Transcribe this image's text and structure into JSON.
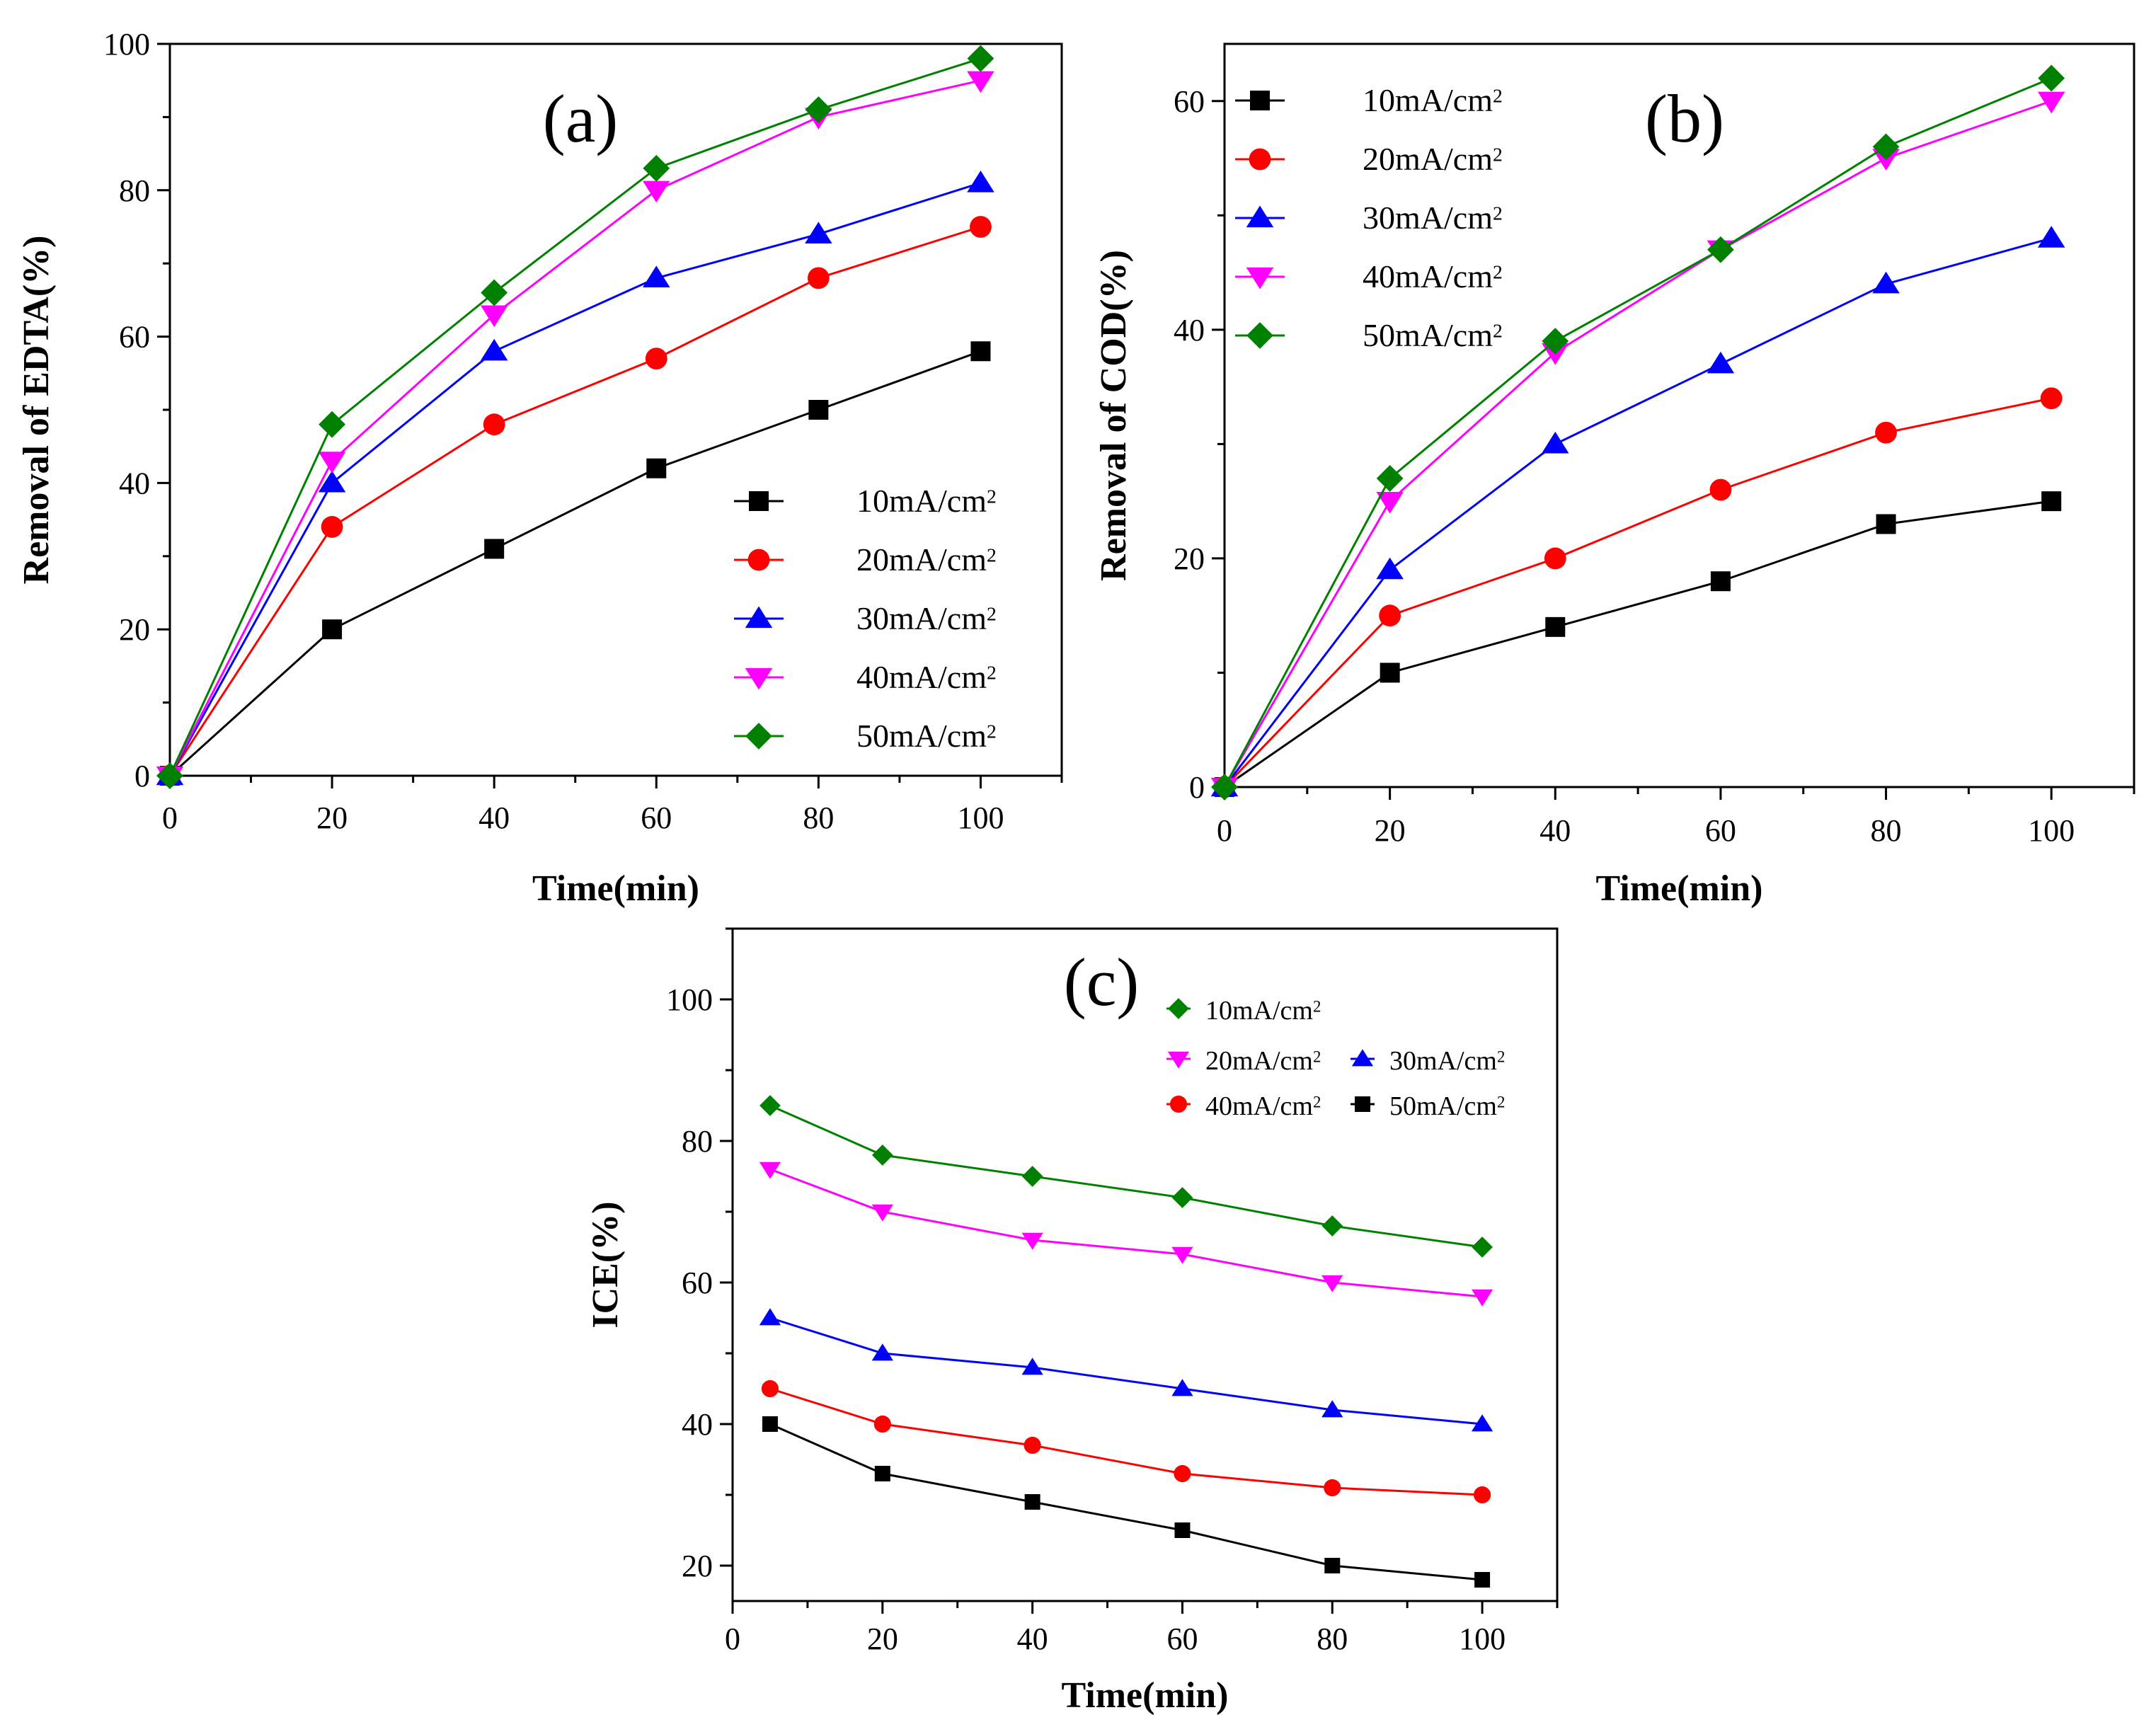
{
  "chart_data": [
    {
      "type": "line",
      "tag": "(a)",
      "xlabel": "Time(min)",
      "ylabel": "Removal of EDTA(%)",
      "xlim": [
        0,
        110
      ],
      "ylim": [
        0,
        100
      ],
      "xticks": [
        0,
        20,
        40,
        60,
        80,
        100
      ],
      "yticks": [
        0,
        20,
        40,
        60,
        80,
        100
      ],
      "x": [
        0,
        20,
        40,
        60,
        80,
        100
      ],
      "legend_position": "lower-right",
      "series": [
        {
          "name": "10mA/cm",
          "sup": "2",
          "color": "#000000",
          "marker": "square",
          "values": [
            0,
            20,
            31,
            42,
            50,
            58
          ]
        },
        {
          "name": "20mA/cm",
          "sup": "2",
          "color": "#ff0000",
          "marker": "circle",
          "values": [
            0,
            34,
            48,
            57,
            68,
            75
          ]
        },
        {
          "name": "30mA/cm",
          "sup": "2",
          "color": "#0000ff",
          "marker": "triangle-up",
          "values": [
            0,
            40,
            58,
            68,
            74,
            81
          ]
        },
        {
          "name": "40mA/cm",
          "sup": "2",
          "color": "#ff00ff",
          "marker": "triangle-down",
          "values": [
            0,
            43,
            63,
            80,
            90,
            95
          ]
        },
        {
          "name": "50mA/cm",
          "sup": "2",
          "color": "#008000",
          "marker": "diamond",
          "values": [
            0,
            48,
            66,
            83,
            91,
            98
          ]
        }
      ]
    },
    {
      "type": "line",
      "tag": "(b)",
      "xlabel": "Time(min)",
      "ylabel": "Removal of COD(%)",
      "xlim": [
        0,
        110
      ],
      "ylim": [
        0,
        65
      ],
      "xticks": [
        0,
        20,
        40,
        60,
        80,
        100
      ],
      "yticks": [
        0,
        20,
        40,
        60
      ],
      "x": [
        0,
        20,
        40,
        60,
        80,
        100
      ],
      "legend_position": "top-left",
      "series": [
        {
          "name": "10mA/cm",
          "sup": "2",
          "color": "#000000",
          "marker": "square",
          "values": [
            0,
            10,
            14,
            18,
            23,
            25
          ]
        },
        {
          "name": "20mA/cm",
          "sup": "2",
          "color": "#ff0000",
          "marker": "circle",
          "values": [
            0,
            15,
            20,
            26,
            31,
            34
          ]
        },
        {
          "name": "30mA/cm",
          "sup": "2",
          "color": "#0000ff",
          "marker": "triangle-up",
          "values": [
            0,
            19,
            30,
            37,
            44,
            48
          ]
        },
        {
          "name": "40mA/cm",
          "sup": "2",
          "color": "#ff00ff",
          "marker": "triangle-down",
          "values": [
            0,
            25,
            38,
            47,
            55,
            60
          ]
        },
        {
          "name": "50mA/cm",
          "sup": "2",
          "color": "#008000",
          "marker": "diamond",
          "values": [
            0,
            27,
            39,
            47,
            56,
            62
          ]
        }
      ]
    },
    {
      "type": "line",
      "tag": "(c)",
      "xlabel": "Time(min)",
      "ylabel": "ICE(%)",
      "xlim": [
        0,
        110
      ],
      "ylim": [
        15,
        110
      ],
      "xticks": [
        0,
        20,
        40,
        60,
        80,
        100
      ],
      "yticks": [
        20,
        40,
        60,
        80,
        100
      ],
      "x": [
        5,
        20,
        40,
        60,
        80,
        100
      ],
      "legend_position": "top-right",
      "series": [
        {
          "name": "10mA/cm",
          "sup": "2",
          "color": "#008000",
          "marker": "diamond",
          "values": [
            85,
            78,
            75,
            72,
            68,
            65
          ]
        },
        {
          "name": "20mA/cm",
          "sup": "2",
          "color": "#ff00ff",
          "marker": "triangle-down",
          "values": [
            76,
            70,
            66,
            64,
            60,
            58
          ]
        },
        {
          "name": "30mA/cm",
          "sup": "2",
          "color": "#0000ff",
          "marker": "triangle-up",
          "values": [
            55,
            50,
            48,
            45,
            42,
            40
          ]
        },
        {
          "name": "40mA/cm",
          "sup": "2",
          "color": "#ff0000",
          "marker": "circle",
          "values": [
            45,
            40,
            37,
            33,
            31,
            30
          ]
        },
        {
          "name": "50mA/cm",
          "sup": "2",
          "color": "#000000",
          "marker": "square",
          "values": [
            40,
            33,
            29,
            25,
            20,
            18
          ]
        }
      ]
    }
  ]
}
